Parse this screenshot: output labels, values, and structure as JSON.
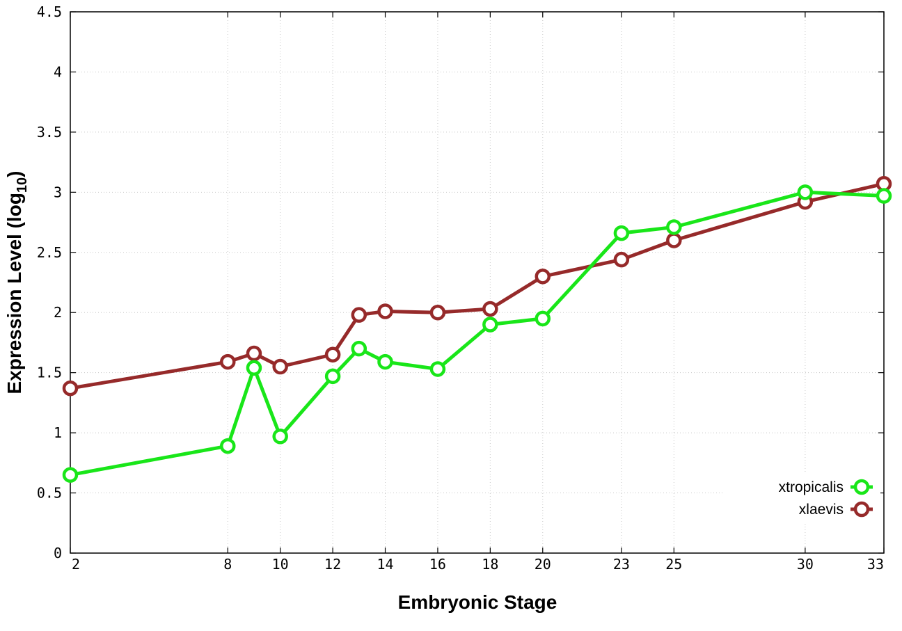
{
  "chart_data": {
    "type": "line",
    "xlabel": "Embryonic Stage",
    "ylabel_main": "Expression Level (log",
    "ylabel_sub": "10",
    "ylabel_close": ")",
    "xlim": [
      2,
      33
    ],
    "ylim": [
      0,
      4.5
    ],
    "x_ticks": [
      2,
      8,
      10,
      12,
      14,
      16,
      18,
      20,
      23,
      25,
      30,
      33
    ],
    "y_ticks": [
      {
        "value": 0,
        "label": "0"
      },
      {
        "value": 0.5,
        "label": "0.5"
      },
      {
        "value": 1,
        "label": "1"
      },
      {
        "value": 1.5,
        "label": "1.5"
      },
      {
        "value": 2,
        "label": "2"
      },
      {
        "value": 2.5,
        "label": "2.5"
      },
      {
        "value": 3,
        "label": "3"
      },
      {
        "value": 3.5,
        "label": "3.5"
      },
      {
        "value": 4,
        "label": "4"
      },
      {
        "value": 4.5,
        "label": "4.5"
      }
    ],
    "grid": true,
    "legend_position": "bottom-right",
    "x": [
      2,
      8,
      9,
      10,
      12,
      13,
      14,
      16,
      18,
      20,
      23,
      25,
      30,
      33
    ],
    "series": [
      {
        "name": "xtropicalis",
        "color": "#19e619",
        "values": [
          0.65,
          0.89,
          1.54,
          0.97,
          1.47,
          1.7,
          1.59,
          1.53,
          1.9,
          1.95,
          2.66,
          2.71,
          3.0,
          2.97
        ]
      },
      {
        "name": "xlaevis",
        "color": "#962a2a",
        "values": [
          1.37,
          1.59,
          1.66,
          1.55,
          1.65,
          1.98,
          2.01,
          2.0,
          2.03,
          2.3,
          2.44,
          2.6,
          2.92,
          3.07
        ]
      }
    ]
  }
}
